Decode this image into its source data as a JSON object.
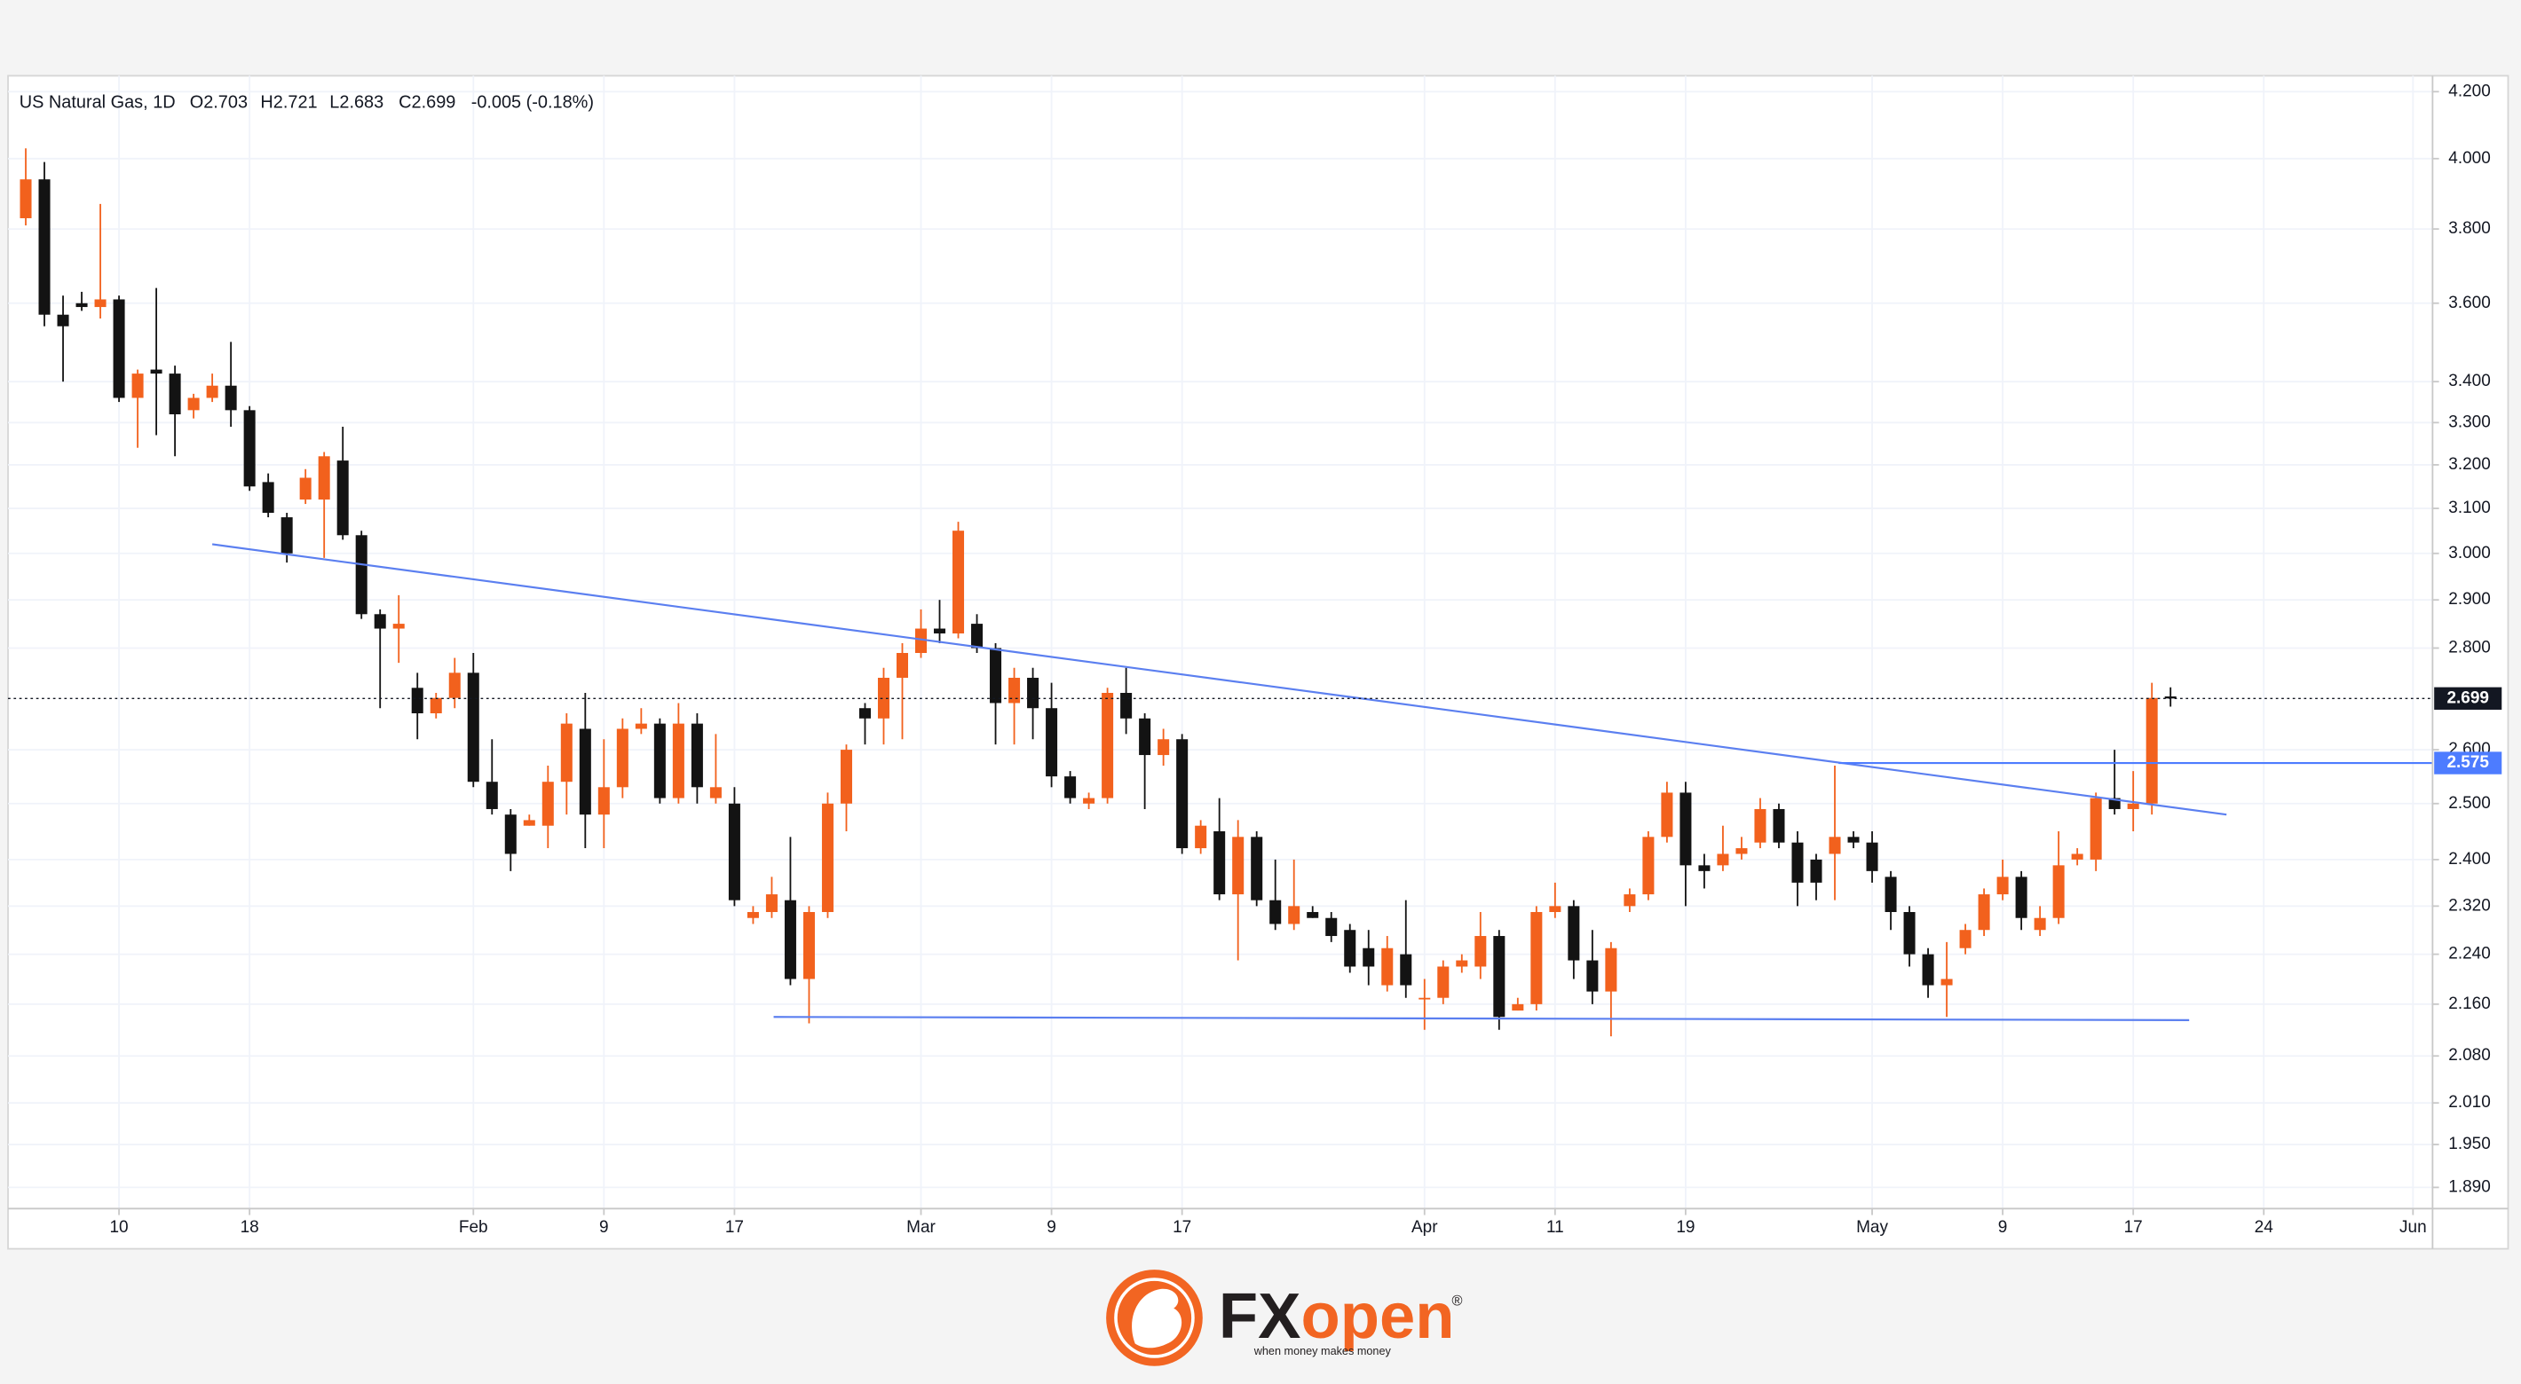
{
  "chart_data": {
    "type": "candlestick",
    "title": "US Natural Gas, 1D",
    "ohlc_header": [
      "O2.703",
      "H2.721",
      "L2.683",
      "C2.699",
      "-0.005 (-0.18%)"
    ],
    "up_color": "#f2611d",
    "down_color": "#131313",
    "yscale": "log",
    "grid": true,
    "xlim": [
      -0.95,
      129.05
    ],
    "ylim": [
      1.861,
      4.249
    ],
    "xticks": [
      {
        "value": 5,
        "label": "10"
      },
      {
        "value": 12,
        "label": "18"
      },
      {
        "value": 24,
        "label": "Feb"
      },
      {
        "value": 31,
        "label": "9"
      },
      {
        "value": 38,
        "label": "17"
      },
      {
        "value": 48,
        "label": "Mar"
      },
      {
        "value": 55,
        "label": "9"
      },
      {
        "value": 62,
        "label": "17"
      },
      {
        "value": 75,
        "label": "Apr"
      },
      {
        "value": 82,
        "label": "11"
      },
      {
        "value": 89,
        "label": "19"
      },
      {
        "value": 99,
        "label": "May"
      },
      {
        "value": 106,
        "label": "9"
      },
      {
        "value": 113,
        "label": "17"
      },
      {
        "value": 120,
        "label": "24"
      },
      {
        "value": 128,
        "label": "Jun"
      }
    ],
    "yticks": [
      {
        "value": 4.2,
        "label": "4.200"
      },
      {
        "value": 4.0,
        "label": "4.000"
      },
      {
        "value": 3.8,
        "label": "3.800"
      },
      {
        "value": 3.6,
        "label": "3.600"
      },
      {
        "value": 3.4,
        "label": "3.400"
      },
      {
        "value": 3.3,
        "label": "3.300"
      },
      {
        "value": 3.2,
        "label": "3.200"
      },
      {
        "value": 3.1,
        "label": "3.100"
      },
      {
        "value": 3.0,
        "label": "3.000"
      },
      {
        "value": 2.9,
        "label": "2.900"
      },
      {
        "value": 2.8,
        "label": "2.800"
      },
      {
        "value": 2.6,
        "label": "2.600"
      },
      {
        "value": 2.5,
        "label": "2.500"
      },
      {
        "value": 2.4,
        "label": "2.400"
      },
      {
        "value": 2.32,
        "label": "2.320"
      },
      {
        "value": 2.24,
        "label": "2.240"
      },
      {
        "value": 2.16,
        "label": "2.160"
      },
      {
        "value": 2.08,
        "label": "2.080"
      },
      {
        "value": 2.01,
        "label": "2.010"
      },
      {
        "value": 1.95,
        "label": "1.950"
      },
      {
        "value": 1.89,
        "label": "1.890"
      }
    ],
    "open": [
      3.83,
      3.94,
      3.57,
      3.6,
      3.59,
      3.61,
      3.36,
      3.43,
      3.42,
      3.33,
      3.36,
      3.39,
      3.33,
      3.16,
      3.08,
      3.12,
      3.12,
      3.21,
      3.04,
      2.87,
      2.84,
      2.72,
      2.67,
      2.7,
      2.75,
      2.54,
      2.48,
      2.46,
      2.46,
      2.54,
      2.64,
      2.48,
      2.53,
      2.64,
      2.65,
      2.51,
      2.65,
      2.51,
      2.5,
      2.3,
      2.31,
      2.33,
      2.2,
      2.31,
      2.5,
      2.68,
      2.66,
      2.74,
      2.79,
      2.84,
      2.83,
      2.85,
      2.8,
      2.69,
      2.74,
      2.68,
      2.55,
      2.5,
      2.51,
      2.71,
      2.66,
      2.59,
      2.62,
      2.42,
      2.45,
      2.34,
      2.44,
      2.33,
      2.29,
      2.31,
      2.3,
      2.28,
      2.25,
      2.19,
      2.24,
      2.17,
      2.17,
      2.22,
      2.22,
      2.27,
      2.15,
      2.16,
      2.31,
      2.32,
      2.23,
      2.18,
      2.32,
      2.34,
      2.44,
      2.52,
      2.39,
      2.39,
      2.41,
      2.43,
      2.49,
      2.43,
      2.4,
      2.41,
      2.44,
      2.43,
      2.37,
      2.31,
      2.24,
      2.19,
      2.25,
      2.28,
      2.34,
      2.37,
      2.28,
      2.3,
      2.4,
      2.4,
      2.51,
      2.49,
      2.5,
      2.703
    ],
    "high": [
      4.03,
      3.99,
      3.62,
      3.63,
      3.87,
      3.62,
      3.43,
      3.64,
      3.44,
      3.37,
      3.42,
      3.5,
      3.34,
      3.18,
      3.09,
      3.19,
      3.23,
      3.29,
      3.05,
      2.88,
      2.91,
      2.75,
      2.71,
      2.78,
      2.79,
      2.62,
      2.49,
      2.48,
      2.57,
      2.67,
      2.71,
      2.62,
      2.66,
      2.68,
      2.66,
      2.69,
      2.67,
      2.63,
      2.53,
      2.32,
      2.37,
      2.44,
      2.32,
      2.52,
      2.61,
      2.69,
      2.76,
      2.81,
      2.88,
      2.9,
      3.07,
      2.87,
      2.81,
      2.76,
      2.76,
      2.73,
      2.56,
      2.52,
      2.72,
      2.76,
      2.67,
      2.64,
      2.63,
      2.47,
      2.51,
      2.47,
      2.45,
      2.4,
      2.4,
      2.32,
      2.31,
      2.29,
      2.28,
      2.27,
      2.33,
      2.2,
      2.23,
      2.24,
      2.31,
      2.28,
      2.17,
      2.32,
      2.36,
      2.33,
      2.28,
      2.26,
      2.35,
      2.45,
      2.54,
      2.54,
      2.41,
      2.46,
      2.44,
      2.51,
      2.5,
      2.45,
      2.41,
      2.57,
      2.45,
      2.45,
      2.38,
      2.32,
      2.25,
      2.26,
      2.29,
      2.35,
      2.4,
      2.38,
      2.32,
      2.45,
      2.42,
      2.52,
      2.6,
      2.56,
      2.73,
      2.721
    ],
    "low": [
      3.81,
      3.54,
      3.4,
      3.58,
      3.56,
      3.35,
      3.24,
      3.27,
      3.22,
      3.31,
      3.35,
      3.29,
      3.14,
      3.08,
      2.98,
      3.11,
      2.99,
      3.03,
      2.86,
      2.68,
      2.77,
      2.62,
      2.66,
      2.68,
      2.53,
      2.48,
      2.38,
      2.46,
      2.42,
      2.48,
      2.42,
      2.42,
      2.51,
      2.63,
      2.5,
      2.5,
      2.5,
      2.5,
      2.32,
      2.29,
      2.3,
      2.19,
      2.13,
      2.3,
      2.45,
      2.61,
      2.61,
      2.62,
      2.78,
      2.81,
      2.82,
      2.79,
      2.61,
      2.61,
      2.62,
      2.53,
      2.5,
      2.49,
      2.5,
      2.63,
      2.49,
      2.57,
      2.41,
      2.41,
      2.33,
      2.23,
      2.32,
      2.28,
      2.28,
      2.3,
      2.26,
      2.21,
      2.19,
      2.18,
      2.17,
      2.12,
      2.16,
      2.21,
      2.2,
      2.12,
      2.15,
      2.15,
      2.3,
      2.2,
      2.16,
      2.11,
      2.31,
      2.33,
      2.43,
      2.32,
      2.35,
      2.38,
      2.4,
      2.42,
      2.42,
      2.32,
      2.33,
      2.33,
      2.42,
      2.36,
      2.28,
      2.22,
      2.17,
      2.14,
      2.24,
      2.27,
      2.33,
      2.28,
      2.27,
      2.29,
      2.39,
      2.38,
      2.48,
      2.45,
      2.48,
      2.683
    ],
    "close": [
      3.94,
      3.57,
      3.54,
      3.59,
      3.61,
      3.36,
      3.42,
      3.42,
      3.32,
      3.36,
      3.39,
      3.33,
      3.15,
      3.09,
      3.0,
      3.17,
      3.22,
      3.04,
      2.87,
      2.84,
      2.85,
      2.67,
      2.7,
      2.75,
      2.54,
      2.49,
      2.41,
      2.47,
      2.54,
      2.65,
      2.48,
      2.53,
      2.64,
      2.65,
      2.51,
      2.65,
      2.53,
      2.53,
      2.33,
      2.31,
      2.34,
      2.2,
      2.31,
      2.5,
      2.6,
      2.66,
      2.74,
      2.79,
      2.84,
      2.83,
      3.05,
      2.8,
      2.69,
      2.74,
      2.68,
      2.55,
      2.51,
      2.51,
      2.71,
      2.66,
      2.59,
      2.62,
      2.42,
      2.46,
      2.34,
      2.44,
      2.33,
      2.29,
      2.32,
      2.3,
      2.27,
      2.22,
      2.22,
      2.25,
      2.19,
      2.17,
      2.22,
      2.23,
      2.27,
      2.14,
      2.16,
      2.31,
      2.32,
      2.23,
      2.18,
      2.25,
      2.34,
      2.44,
      2.52,
      2.39,
      2.38,
      2.41,
      2.42,
      2.49,
      2.43,
      2.36,
      2.36,
      2.44,
      2.43,
      2.38,
      2.31,
      2.24,
      2.19,
      2.2,
      2.28,
      2.34,
      2.37,
      2.3,
      2.3,
      2.39,
      2.41,
      2.51,
      2.49,
      2.5,
      2.7,
      2.699
    ],
    "trendlines": [
      {
        "x": [
          10,
          118
        ],
        "values": [
          3.02,
          2.48
        ],
        "color": "#5b7ff0"
      },
      {
        "x": [
          40.1,
          116
        ],
        "values": [
          2.14,
          2.135
        ],
        "color": "#5b7ff0"
      }
    ],
    "level": {
      "value": 2.575,
      "x_start": 97.2,
      "color": "#4d7cff"
    },
    "last_price": 2.699
  },
  "logo": {
    "brand": [
      "FX",
      "open"
    ],
    "mark": "®",
    "tagline": "when money makes money"
  }
}
